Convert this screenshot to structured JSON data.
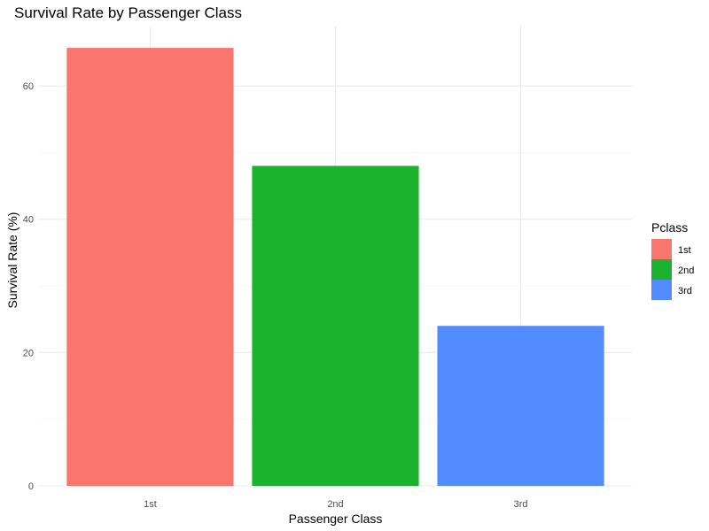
{
  "chart_data": {
    "type": "bar",
    "title": "Survival Rate by Passenger Class",
    "xlabel": "Passenger Class",
    "ylabel": "Survival Rate (%)",
    "categories": [
      "1st",
      "2nd",
      "3rd"
    ],
    "values": [
      65.7,
      48.0,
      24.0
    ],
    "ylim": [
      0,
      68.9
    ],
    "yticks": [
      0,
      20,
      40,
      60
    ],
    "grid": true,
    "legend": {
      "title": "Pclass",
      "placement": "right",
      "entries": [
        "1st",
        "2nd",
        "3rd"
      ]
    },
    "colors": [
      "#F8766D",
      "#1BB22F",
      "#528AFF"
    ]
  }
}
